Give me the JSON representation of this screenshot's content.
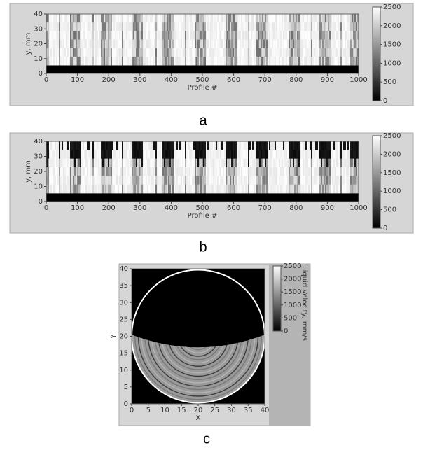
{
  "panels": [
    {
      "caption": "a",
      "xlabel": "Profile #",
      "ylabel": "y, mm",
      "xlim": [
        0,
        1000
      ],
      "ylim": [
        0,
        40
      ],
      "xticks": [
        0,
        100,
        200,
        300,
        400,
        500,
        600,
        700,
        800,
        900,
        1000
      ],
      "yticks": [
        0,
        10,
        20,
        30,
        40
      ],
      "colorbar": {
        "lim": [
          0,
          2500
        ],
        "ticks": [
          0,
          500,
          1000,
          1500,
          2000,
          2500
        ]
      }
    },
    {
      "caption": "b",
      "xlabel": "Profile #",
      "ylabel": "y, mm",
      "xlim": [
        0,
        1000
      ],
      "ylim": [
        0,
        40
      ],
      "xticks": [
        0,
        100,
        200,
        300,
        400,
        500,
        600,
        700,
        800,
        900,
        1000
      ],
      "yticks": [
        0,
        10,
        20,
        30,
        40
      ],
      "colorbar": {
        "lim": [
          0,
          2500
        ],
        "ticks": [
          0,
          500,
          1000,
          1500,
          2000,
          2500
        ]
      }
    },
    {
      "caption": "c",
      "xlabel": "X",
      "ylabel": "Y",
      "xlim": [
        0,
        40
      ],
      "ylim": [
        0,
        40
      ],
      "xticks": [
        0,
        5,
        10,
        15,
        20,
        25,
        30,
        35,
        40
      ],
      "yticks": [
        0,
        5,
        10,
        15,
        20,
        25,
        30,
        35,
        40
      ],
      "colorbar": {
        "label": "Liquid Velocity, mm/s",
        "lim": [
          0,
          2500
        ],
        "ticks": [
          0,
          500,
          1000,
          1500,
          2000,
          2500
        ]
      }
    }
  ]
}
